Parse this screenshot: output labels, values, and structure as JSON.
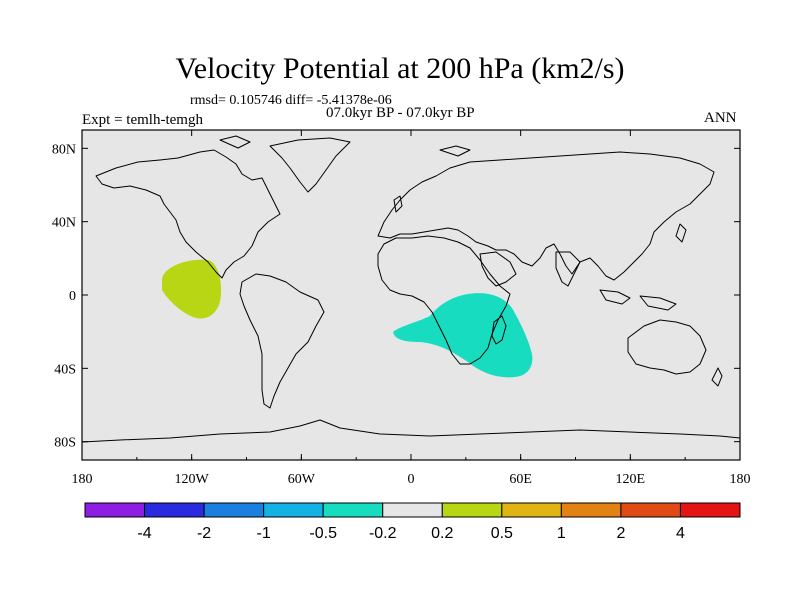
{
  "title": "Velocity Potential at 200 hPa (km2/s)",
  "stats": "rmsd= 0.105746 diff= -5.41378e-06",
  "subtitle": "07.0kyr BP - 07.0kyr BP",
  "left_label": "Expt = temlh-temgh",
  "right_label": "ANN",
  "x_ticks": [
    "180",
    "120W",
    "60W",
    "0",
    "60E",
    "120E",
    "180"
  ],
  "y_ticks": [
    "80N",
    "40N",
    "0",
    "40S",
    "80S"
  ],
  "colorbar": {
    "colors": [
      "#8f1ee3",
      "#2a2ae0",
      "#1a7fdf",
      "#14b2e4",
      "#18dcc0",
      "#e6e6e6",
      "#b8d614",
      "#e0b414",
      "#e38214",
      "#e04a14",
      "#e31414"
    ],
    "labels": [
      "-4",
      "-2",
      "-1",
      "-0.5",
      "-0.2",
      "0.2",
      "0.5",
      "1",
      "2",
      "4"
    ]
  },
  "map": {
    "ocean_color": "#e6e6e6",
    "positive_region_color": "#b8d614",
    "negative_region_color": "#18dcc0"
  }
}
